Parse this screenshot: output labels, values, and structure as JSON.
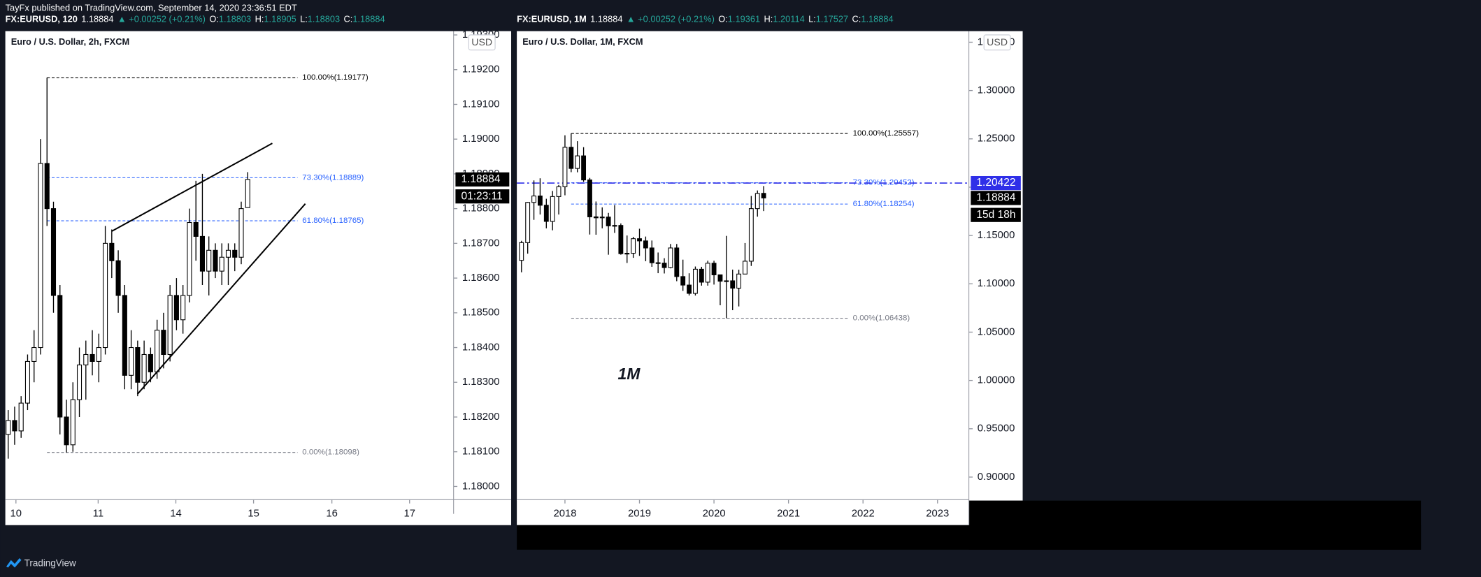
{
  "header": {
    "text": "TayFx published on TradingView.com, September 14, 2020 23:36:51 EDT"
  },
  "footer": {
    "brand": "TradingView"
  },
  "chart_data": [
    {
      "type": "candlestick",
      "title": "Euro / U.S. Dollar, 2h, FXCM",
      "currency": "USD",
      "legend": {
        "symbol": "FX:EURUSD, 120",
        "last": "1.18884",
        "change": "▲ +0.00252 (+0.21%)",
        "ohlc": [
          [
            "O:",
            "1.18803"
          ],
          [
            "H:",
            "1.18905"
          ],
          [
            "L:",
            "1.18803"
          ],
          [
            "C:",
            "1.18884"
          ]
        ]
      },
      "x": [
        0,
        1,
        2,
        3,
        4,
        5,
        6,
        7,
        8,
        9,
        10,
        11,
        12,
        13,
        14,
        15,
        16,
        17,
        18,
        19,
        20,
        21,
        22,
        23,
        24,
        25,
        26,
        27,
        28,
        29,
        30,
        31,
        32,
        33,
        34,
        35,
        36,
        37
      ],
      "open": [
        1.1815,
        1.1819,
        1.1816,
        1.1824,
        1.1836,
        1.184,
        1.1893,
        1.188,
        1.1855,
        1.182,
        1.1812,
        1.1825,
        1.1835,
        1.1838,
        1.1836,
        1.184,
        1.187,
        1.1865,
        1.1855,
        1.1832,
        1.184,
        1.183,
        1.1838,
        1.1833,
        1.1845,
        1.1838,
        1.1855,
        1.1848,
        1.1855,
        1.1876,
        1.1872,
        1.1862,
        1.1868,
        1.1862,
        1.1866,
        1.1868,
        1.1866,
        1.18803
      ],
      "high": [
        1.1822,
        1.1823,
        1.1826,
        1.1838,
        1.1845,
        1.19,
        1.19177,
        1.1882,
        1.1858,
        1.1825,
        1.183,
        1.184,
        1.1842,
        1.1845,
        1.1844,
        1.1875,
        1.1874,
        1.1868,
        1.1858,
        1.1845,
        1.1842,
        1.1842,
        1.184,
        1.1848,
        1.185,
        1.1858,
        1.186,
        1.1858,
        1.188,
        1.1888,
        1.189,
        1.1872,
        1.187,
        1.187,
        1.187,
        1.187,
        1.1882,
        1.18905
      ],
      "low": [
        1.1808,
        1.1812,
        1.1814,
        1.1822,
        1.183,
        1.1838,
        1.1875,
        1.185,
        1.1815,
        1.18098,
        1.181,
        1.182,
        1.1825,
        1.1832,
        1.183,
        1.1838,
        1.186,
        1.185,
        1.1828,
        1.1828,
        1.1826,
        1.1828,
        1.183,
        1.1831,
        1.1834,
        1.1836,
        1.1845,
        1.1844,
        1.1853,
        1.1865,
        1.1858,
        1.1855,
        1.186,
        1.1858,
        1.1858,
        1.1862,
        1.1864,
        1.18803
      ],
      "close": [
        1.1819,
        1.1816,
        1.1824,
        1.1836,
        1.184,
        1.1893,
        1.188,
        1.1855,
        1.182,
        1.1812,
        1.1825,
        1.1835,
        1.1838,
        1.1836,
        1.184,
        1.187,
        1.1865,
        1.1855,
        1.1832,
        1.184,
        1.183,
        1.1838,
        1.1833,
        1.1845,
        1.1838,
        1.1855,
        1.1848,
        1.1855,
        1.1876,
        1.1872,
        1.1862,
        1.1868,
        1.1862,
        1.1866,
        1.1868,
        1.1866,
        1.188,
        1.18884
      ],
      "up_color": "#ffffff",
      "down_color": "#000000",
      "xlim": [
        -0.44,
        68.8
      ],
      "xticks": [
        {
          "value": 1.2,
          "label": "10"
        },
        {
          "value": 13.9,
          "label": "11"
        },
        {
          "value": 25.9,
          "label": "14"
        },
        {
          "value": 37.9,
          "label": "15"
        },
        {
          "value": 50,
          "label": "16"
        },
        {
          "value": 62,
          "label": "17"
        }
      ],
      "ylim": [
        1.17962,
        1.19311
      ],
      "yticks": [
        {
          "value": 1.18,
          "label": "1.18000"
        },
        {
          "value": 1.181,
          "label": "1.18100"
        },
        {
          "value": 1.182,
          "label": "1.18200"
        },
        {
          "value": 1.183,
          "label": "1.18300"
        },
        {
          "value": 1.184,
          "label": "1.18400"
        },
        {
          "value": 1.185,
          "label": "1.18500"
        },
        {
          "value": 1.186,
          "label": "1.18600"
        },
        {
          "value": 1.187,
          "label": "1.18700"
        },
        {
          "value": 1.188,
          "label": "1.18800"
        },
        {
          "value": 1.189,
          "label": "1.18900"
        },
        {
          "value": 1.19,
          "label": "1.19000"
        },
        {
          "value": 1.191,
          "label": "1.19100"
        },
        {
          "value": 1.192,
          "label": "1.19200"
        },
        {
          "value": 1.193,
          "label": "1.19300"
        }
      ],
      "levels": [
        {
          "label": "100.00%(1.19177)",
          "value": 1.19177,
          "color": "#000000",
          "x": [
            6,
            44.7
          ]
        },
        {
          "label": "73.30%(1.18889)",
          "value": 1.18889,
          "color": "#2962ff",
          "x": [
            6,
            44.7
          ]
        },
        {
          "label": "61.80%(1.18765)",
          "value": 1.18765,
          "color": "#2962ff",
          "x": [
            6,
            44.7
          ]
        },
        {
          "label": "0.00%(1.18098)",
          "value": 1.18098,
          "color": "#787b86",
          "x": [
            6,
            44.7
          ]
        }
      ],
      "trend_lines": [
        {
          "x": [
            16,
            40.8
          ],
          "y": [
            1.18735,
            1.18988
          ]
        },
        {
          "x": [
            19.97,
            45.9
          ],
          "y": [
            1.18266,
            1.18814
          ]
        }
      ],
      "price_lines": [],
      "last_price": {
        "value": 1.18884,
        "label": "1.18884"
      },
      "countdown": "01:23:11"
    },
    {
      "type": "candlestick",
      "title": "Euro / U.S. Dollar, 1M, FXCM",
      "currency": "USD",
      "note": "1M",
      "legend": {
        "symbol": "FX:EURUSD, 1M",
        "last": "1.18884",
        "change": "▲ +0.00252 (+0.21%)",
        "ohlc": [
          [
            "O:",
            "1.19361"
          ],
          [
            "H:",
            "1.20114"
          ],
          [
            "L:",
            "1.17527"
          ],
          [
            "C:",
            "1.18884"
          ]
        ]
      },
      "x": [
        -7,
        -6,
        -5,
        -4,
        -3,
        -2,
        -1,
        0,
        1,
        2,
        3,
        4,
        5,
        6,
        7,
        8,
        9,
        10,
        11,
        12,
        13,
        14,
        15,
        16,
        17,
        18,
        19,
        20,
        21,
        22,
        23,
        24,
        25,
        26,
        27,
        28,
        29,
        30,
        31,
        32
      ],
      "open": [
        1.1243,
        1.1426,
        1.1842,
        1.1909,
        1.1813,
        1.1646,
        1.1903,
        1.2005,
        1.2413,
        1.2194,
        1.2324,
        1.2075,
        1.1693,
        1.1683,
        1.1691,
        1.16,
        1.1604,
        1.1312,
        1.1316,
        1.1467,
        1.1444,
        1.1371,
        1.1218,
        1.1214,
        1.1168,
        1.1371,
        1.1075,
        1.0987,
        1.0901,
        1.1151,
        1.1017,
        1.1213,
        1.1093,
        1.1027,
        1.1031,
        1.0955,
        1.1101,
        1.1234,
        1.1778,
        1.19361
      ],
      "high": [
        1.1445,
        1.1847,
        1.207,
        1.2092,
        1.188,
        1.1961,
        1.2023,
        1.2537,
        1.25557,
        1.2476,
        1.2414,
        1.2096,
        1.1852,
        1.1791,
        1.1734,
        1.1815,
        1.1625,
        1.15,
        1.1486,
        1.157,
        1.1489,
        1.1448,
        1.1324,
        1.1265,
        1.1412,
        1.1412,
        1.125,
        1.1109,
        1.1179,
        1.1176,
        1.1239,
        1.1239,
        1.1095,
        1.1496,
        1.1147,
        1.1146,
        1.1422,
        1.1909,
        1.1966,
        1.20114
      ],
      "low": [
        1.1119,
        1.1312,
        1.1662,
        1.1717,
        1.1574,
        1.1554,
        1.1717,
        1.1916,
        1.2155,
        1.2154,
        1.2055,
        1.151,
        1.1508,
        1.1574,
        1.1301,
        1.1527,
        1.1301,
        1.1216,
        1.1269,
        1.1289,
        1.1234,
        1.1176,
        1.111,
        1.1107,
        1.116,
        1.1027,
        1.0927,
        1.0879,
        1.0879,
        1.0981,
        1.0981,
        1.0992,
        1.0778,
        1.06438,
        1.0727,
        1.0766,
        1.1101,
        1.1185,
        1.1695,
        1.17527
      ],
      "close": [
        1.1426,
        1.1842,
        1.1909,
        1.1813,
        1.1646,
        1.1903,
        1.2005,
        1.2413,
        1.2194,
        1.2324,
        1.2075,
        1.1693,
        1.1683,
        1.1691,
        1.16,
        1.1604,
        1.1312,
        1.1316,
        1.1467,
        1.1444,
        1.1371,
        1.1218,
        1.1214,
        1.1168,
        1.1371,
        1.1075,
        1.0987,
        1.0901,
        1.1151,
        1.1017,
        1.1213,
        1.1093,
        1.1027,
        1.1031,
        1.0955,
        1.1101,
        1.1234,
        1.1778,
        1.1935,
        1.18884
      ],
      "up_color": "#ffffff",
      "down_color": "#000000",
      "xlim": [
        -7.75,
        65.05
      ],
      "xticks": [
        {
          "value": 0,
          "label": "2018"
        },
        {
          "value": 12,
          "label": "2019"
        },
        {
          "value": 24,
          "label": "2020"
        },
        {
          "value": 36,
          "label": "2021"
        },
        {
          "value": 48,
          "label": "2022"
        },
        {
          "value": 60,
          "label": "2023"
        }
      ],
      "ylim": [
        0.8766,
        1.3615
      ],
      "yticks": [
        {
          "value": 0.9,
          "label": "0.90000"
        },
        {
          "value": 0.95,
          "label": "0.95000"
        },
        {
          "value": 1,
          "label": "1.00000"
        },
        {
          "value": 1.05,
          "label": "1.05000"
        },
        {
          "value": 1.1,
          "label": "1.10000"
        },
        {
          "value": 1.15,
          "label": "1.15000"
        },
        {
          "value": 1.2,
          "label": "1.20000"
        },
        {
          "value": 1.25,
          "label": "1.25000"
        },
        {
          "value": 1.3,
          "label": "1.30000"
        },
        {
          "value": 1.35,
          "label": "1.35000"
        }
      ],
      "levels": [
        {
          "label": "100.00%(1.25557)",
          "value": 1.25557,
          "color": "#000000",
          "x": [
            1,
            45.6
          ]
        },
        {
          "label": "73.30%(1.20452)",
          "value": 1.20452,
          "color": "#2962ff",
          "x": [
            1,
            45.6
          ]
        },
        {
          "label": "61.80%(1.18254)",
          "value": 1.18254,
          "color": "#2962ff",
          "x": [
            1,
            45.6
          ]
        },
        {
          "label": "0.00%(1.06438)",
          "value": 1.06438,
          "color": "#787b86",
          "x": [
            1,
            45.6
          ]
        }
      ],
      "trend_lines": [],
      "price_lines": [
        {
          "value": 1.20422,
          "label": "1.20422",
          "color": "#2f2fe8"
        }
      ],
      "last_price": {
        "value": 1.18884,
        "label": "1.18884"
      },
      "countdown": "15d 18h"
    }
  ]
}
